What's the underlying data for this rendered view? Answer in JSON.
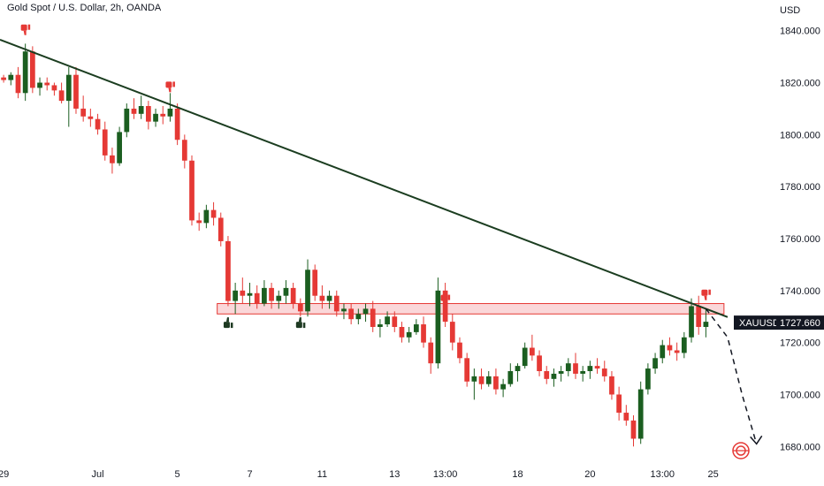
{
  "chart_data": {
    "type": "candlestick",
    "title": "Gold Spot / U.S. Dollar, 2h, OANDA",
    "currency": "USD",
    "symbol": "XAUUSD",
    "last_price": "1727.660",
    "ylim": [
      1675,
      1845
    ],
    "y_ticks": [
      "1840.000",
      "1820.000",
      "1800.000",
      "1780.000",
      "1760.000",
      "1740.000",
      "1720.000",
      "1700.000",
      "1680.000"
    ],
    "x_ticks": [
      "29",
      "Jul",
      "5",
      "7",
      "11",
      "13",
      "13:00",
      "18",
      "20",
      "13:00",
      "25"
    ],
    "colors": {
      "up": "#1b5e20",
      "down": "#e53935",
      "trendline": "#1b3d20",
      "zone_fill": "#f8c9cc",
      "zone_border": "#e53935",
      "badge": "#131722"
    },
    "trendline": {
      "from": [
        0,
        1836
      ],
      "to": [
        97,
        1733
      ]
    },
    "resistance_zone": {
      "low": 1731,
      "high": 1735,
      "from_index": 30,
      "to_index": 100
    },
    "projection": [
      [
        97,
        1733
      ],
      [
        100,
        1722
      ],
      [
        102,
        1700
      ],
      [
        104,
        1681
      ]
    ],
    "markers": [
      {
        "type": "thumbs-down",
        "index": 3,
        "price": 1840
      },
      {
        "type": "thumbs-down",
        "index": 23,
        "price": 1818
      },
      {
        "type": "thumbs-up",
        "index": 31,
        "price": 1728
      },
      {
        "type": "thumbs-up",
        "index": 41,
        "price": 1728
      },
      {
        "type": "thumbs-down",
        "index": 61,
        "price": 1736
      },
      {
        "type": "thumbs-down",
        "index": 97,
        "price": 1738
      }
    ],
    "candles": [
      [
        1822,
        1823,
        1820,
        1821
      ],
      [
        1821,
        1824,
        1819,
        1823
      ],
      [
        1823,
        1826,
        1814,
        1816
      ],
      [
        1816,
        1835,
        1813,
        1832
      ],
      [
        1832,
        1834,
        1816,
        1818
      ],
      [
        1818,
        1822,
        1815,
        1820
      ],
      [
        1820,
        1822,
        1817,
        1819
      ],
      [
        1819,
        1820,
        1815,
        1817
      ],
      [
        1817,
        1820,
        1812,
        1813
      ],
      [
        1813,
        1826,
        1803,
        1823
      ],
      [
        1823,
        1826,
        1808,
        1810
      ],
      [
        1810,
        1815,
        1805,
        1807
      ],
      [
        1807,
        1810,
        1803,
        1806
      ],
      [
        1806,
        1808,
        1800,
        1802
      ],
      [
        1802,
        1805,
        1790,
        1792
      ],
      [
        1792,
        1795,
        1785,
        1789
      ],
      [
        1789,
        1803,
        1788,
        1801
      ],
      [
        1801,
        1812,
        1799,
        1810
      ],
      [
        1810,
        1814,
        1806,
        1808
      ],
      [
        1808,
        1815,
        1806,
        1811
      ],
      [
        1811,
        1813,
        1802,
        1805
      ],
      [
        1805,
        1810,
        1803,
        1808
      ],
      [
        1808,
        1811,
        1804,
        1807
      ],
      [
        1807,
        1816,
        1805,
        1810
      ],
      [
        1810,
        1812,
        1796,
        1798
      ],
      [
        1798,
        1800,
        1787,
        1790
      ],
      [
        1790,
        1792,
        1765,
        1767
      ],
      [
        1767,
        1770,
        1763,
        1766
      ],
      [
        1766,
        1773,
        1764,
        1771
      ],
      [
        1771,
        1774,
        1765,
        1768
      ],
      [
        1768,
        1770,
        1757,
        1759
      ],
      [
        1759,
        1761,
        1734,
        1736
      ],
      [
        1736,
        1743,
        1731,
        1740
      ],
      [
        1740,
        1745,
        1735,
        1738
      ],
      [
        1738,
        1743,
        1734,
        1739
      ],
      [
        1739,
        1742,
        1733,
        1735
      ],
      [
        1735,
        1744,
        1734,
        1741
      ],
      [
        1741,
        1743,
        1733,
        1736
      ],
      [
        1736,
        1740,
        1733,
        1738
      ],
      [
        1738,
        1744,
        1735,
        1741
      ],
      [
        1741,
        1743,
        1733,
        1735
      ],
      [
        1735,
        1737,
        1730,
        1732
      ],
      [
        1732,
        1752,
        1730,
        1748
      ],
      [
        1748,
        1750,
        1736,
        1738
      ],
      [
        1738,
        1742,
        1733,
        1736
      ],
      [
        1736,
        1740,
        1733,
        1738
      ],
      [
        1738,
        1740,
        1730,
        1732
      ],
      [
        1732,
        1735,
        1729,
        1733
      ],
      [
        1733,
        1735,
        1727,
        1729
      ],
      [
        1729,
        1733,
        1727,
        1731
      ],
      [
        1731,
        1735,
        1728,
        1733
      ],
      [
        1733,
        1736,
        1724,
        1726
      ],
      [
        1726,
        1729,
        1722,
        1727
      ],
      [
        1727,
        1732,
        1726,
        1730
      ],
      [
        1730,
        1732,
        1724,
        1726
      ],
      [
        1726,
        1728,
        1720,
        1722
      ],
      [
        1722,
        1726,
        1720,
        1724
      ],
      [
        1724,
        1729,
        1723,
        1727
      ],
      [
        1727,
        1730,
        1718,
        1720
      ],
      [
        1720,
        1722,
        1708,
        1712
      ],
      [
        1712,
        1745,
        1710,
        1740
      ],
      [
        1740,
        1743,
        1726,
        1728
      ],
      [
        1728,
        1731,
        1717,
        1720
      ],
      [
        1720,
        1722,
        1712,
        1714
      ],
      [
        1714,
        1716,
        1703,
        1705
      ],
      [
        1705,
        1710,
        1698,
        1707
      ],
      [
        1707,
        1710,
        1702,
        1704
      ],
      [
        1704,
        1709,
        1703,
        1707
      ],
      [
        1707,
        1710,
        1700,
        1702
      ],
      [
        1702,
        1706,
        1699,
        1704
      ],
      [
        1704,
        1712,
        1703,
        1709
      ],
      [
        1709,
        1712,
        1705,
        1711
      ],
      [
        1711,
        1720,
        1710,
        1718
      ],
      [
        1718,
        1723,
        1713,
        1715
      ],
      [
        1715,
        1717,
        1707,
        1709
      ],
      [
        1709,
        1711,
        1704,
        1706
      ],
      [
        1706,
        1710,
        1703,
        1708
      ],
      [
        1708,
        1711,
        1705,
        1709
      ],
      [
        1709,
        1714,
        1707,
        1712
      ],
      [
        1712,
        1716,
        1706,
        1708
      ],
      [
        1708,
        1711,
        1705,
        1709
      ],
      [
        1709,
        1713,
        1706,
        1711
      ],
      [
        1711,
        1714,
        1708,
        1710
      ],
      [
        1710,
        1713,
        1705,
        1707
      ],
      [
        1707,
        1709,
        1698,
        1700
      ],
      [
        1700,
        1703,
        1690,
        1693
      ],
      [
        1693,
        1696,
        1688,
        1690
      ],
      [
        1690,
        1692,
        1680,
        1683
      ],
      [
        1683,
        1705,
        1681,
        1702
      ],
      [
        1702,
        1712,
        1700,
        1710
      ],
      [
        1710,
        1716,
        1708,
        1714
      ],
      [
        1714,
        1721,
        1712,
        1719
      ],
      [
        1719,
        1722,
        1715,
        1717
      ],
      [
        1717,
        1720,
        1713,
        1716
      ],
      [
        1716,
        1724,
        1714,
        1722
      ],
      [
        1722,
        1737,
        1720,
        1734
      ],
      [
        1734,
        1738,
        1723,
        1726
      ],
      [
        1726,
        1733,
        1722,
        1728
      ]
    ],
    "x_label_indices": [
      0,
      13,
      24,
      34,
      44,
      54,
      61,
      71,
      81,
      91,
      98
    ]
  }
}
